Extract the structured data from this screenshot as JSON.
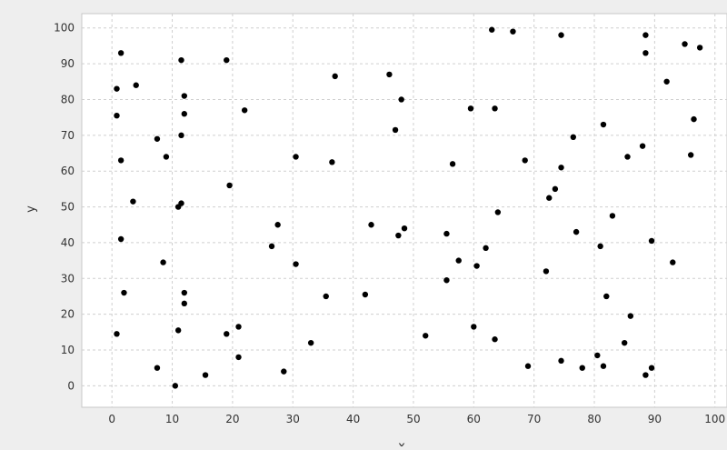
{
  "chart_data": {
    "type": "scatter",
    "title": "",
    "xlabel": "x",
    "ylabel": "y",
    "xlim": [
      -5,
      102
    ],
    "ylim": [
      -6,
      104
    ],
    "xticks": [
      0,
      10,
      20,
      30,
      40,
      50,
      60,
      70,
      80,
      90,
      100
    ],
    "yticks": [
      0,
      10,
      20,
      30,
      40,
      50,
      60,
      70,
      80,
      90,
      100
    ],
    "xtick_labels": [
      "0",
      "10",
      "20",
      "30",
      "40",
      "50",
      "60",
      "70",
      "80",
      "90",
      "100"
    ],
    "ytick_labels": [
      "0",
      "10",
      "20",
      "30",
      "40",
      "50",
      "60",
      "70",
      "80",
      "90",
      "100"
    ],
    "grid": true,
    "legend": "none",
    "colors": {
      "plot_bg": "#ffffff",
      "page_bg": "#eeeeee",
      "grid": "#cfcfcf",
      "point": "#000000",
      "axis_text": "#333333"
    },
    "series": [
      {
        "points": [
          [
            1.5,
            93
          ],
          [
            11.5,
            91
          ],
          [
            19,
            91
          ],
          [
            0.8,
            83
          ],
          [
            4,
            84
          ],
          [
            0.8,
            75.5
          ],
          [
            12,
            81
          ],
          [
            12,
            76
          ],
          [
            22,
            77
          ],
          [
            7.5,
            69
          ],
          [
            11.5,
            70
          ],
          [
            9,
            64
          ],
          [
            1.5,
            63
          ],
          [
            3.5,
            51.5
          ],
          [
            11.5,
            51
          ],
          [
            11,
            50
          ],
          [
            1.5,
            41
          ],
          [
            19.5,
            56
          ],
          [
            8.5,
            34.5
          ],
          [
            2,
            26
          ],
          [
            12,
            26
          ],
          [
            12,
            23
          ],
          [
            0.8,
            14.5
          ],
          [
            7.5,
            5
          ],
          [
            11,
            15.5
          ],
          [
            19,
            14.5
          ],
          [
            21,
            16.5
          ],
          [
            21,
            8
          ],
          [
            15.5,
            3
          ],
          [
            10.5,
            0
          ],
          [
            26.5,
            39
          ],
          [
            27.5,
            45
          ],
          [
            30.5,
            34
          ],
          [
            30.5,
            64
          ],
          [
            36.5,
            62.5
          ],
          [
            37,
            86.5
          ],
          [
            35.5,
            25
          ],
          [
            33,
            12
          ],
          [
            28.5,
            4
          ],
          [
            42,
            25.5
          ],
          [
            43,
            45
          ],
          [
            47,
            71.5
          ],
          [
            46,
            87
          ],
          [
            48,
            80
          ],
          [
            47.5,
            42
          ],
          [
            48.5,
            44
          ],
          [
            52,
            14
          ],
          [
            55.5,
            29.5
          ],
          [
            55.5,
            42.5
          ],
          [
            57.5,
            35
          ],
          [
            56.5,
            62
          ],
          [
            59.5,
            77.5
          ],
          [
            60.5,
            33.5
          ],
          [
            60,
            16.5
          ],
          [
            62,
            38.5
          ],
          [
            63.5,
            13
          ],
          [
            64,
            48.5
          ],
          [
            63.5,
            77.5
          ],
          [
            63,
            99.5
          ],
          [
            66.5,
            99
          ],
          [
            74.5,
            98
          ],
          [
            68.5,
            63
          ],
          [
            69,
            5.5
          ],
          [
            72.5,
            52.5
          ],
          [
            73.5,
            55
          ],
          [
            74.5,
            61
          ],
          [
            72,
            32
          ],
          [
            74.5,
            7
          ],
          [
            76.5,
            69.5
          ],
          [
            77,
            43
          ],
          [
            78,
            5
          ],
          [
            80.5,
            8.5
          ],
          [
            81,
            39
          ],
          [
            81.5,
            73
          ],
          [
            82,
            25
          ],
          [
            81.5,
            5.5
          ],
          [
            83,
            47.5
          ],
          [
            85.5,
            64
          ],
          [
            86,
            19.5
          ],
          [
            85,
            12
          ],
          [
            88,
            67
          ],
          [
            88.5,
            98
          ],
          [
            88.5,
            3
          ],
          [
            89.5,
            5
          ],
          [
            89.5,
            40.5
          ],
          [
            92,
            85
          ],
          [
            93,
            34.5
          ],
          [
            95,
            95.5
          ],
          [
            97.5,
            94.5
          ],
          [
            96.5,
            74.5
          ],
          [
            96,
            64.5
          ],
          [
            88.5,
            93
          ]
        ]
      }
    ]
  }
}
